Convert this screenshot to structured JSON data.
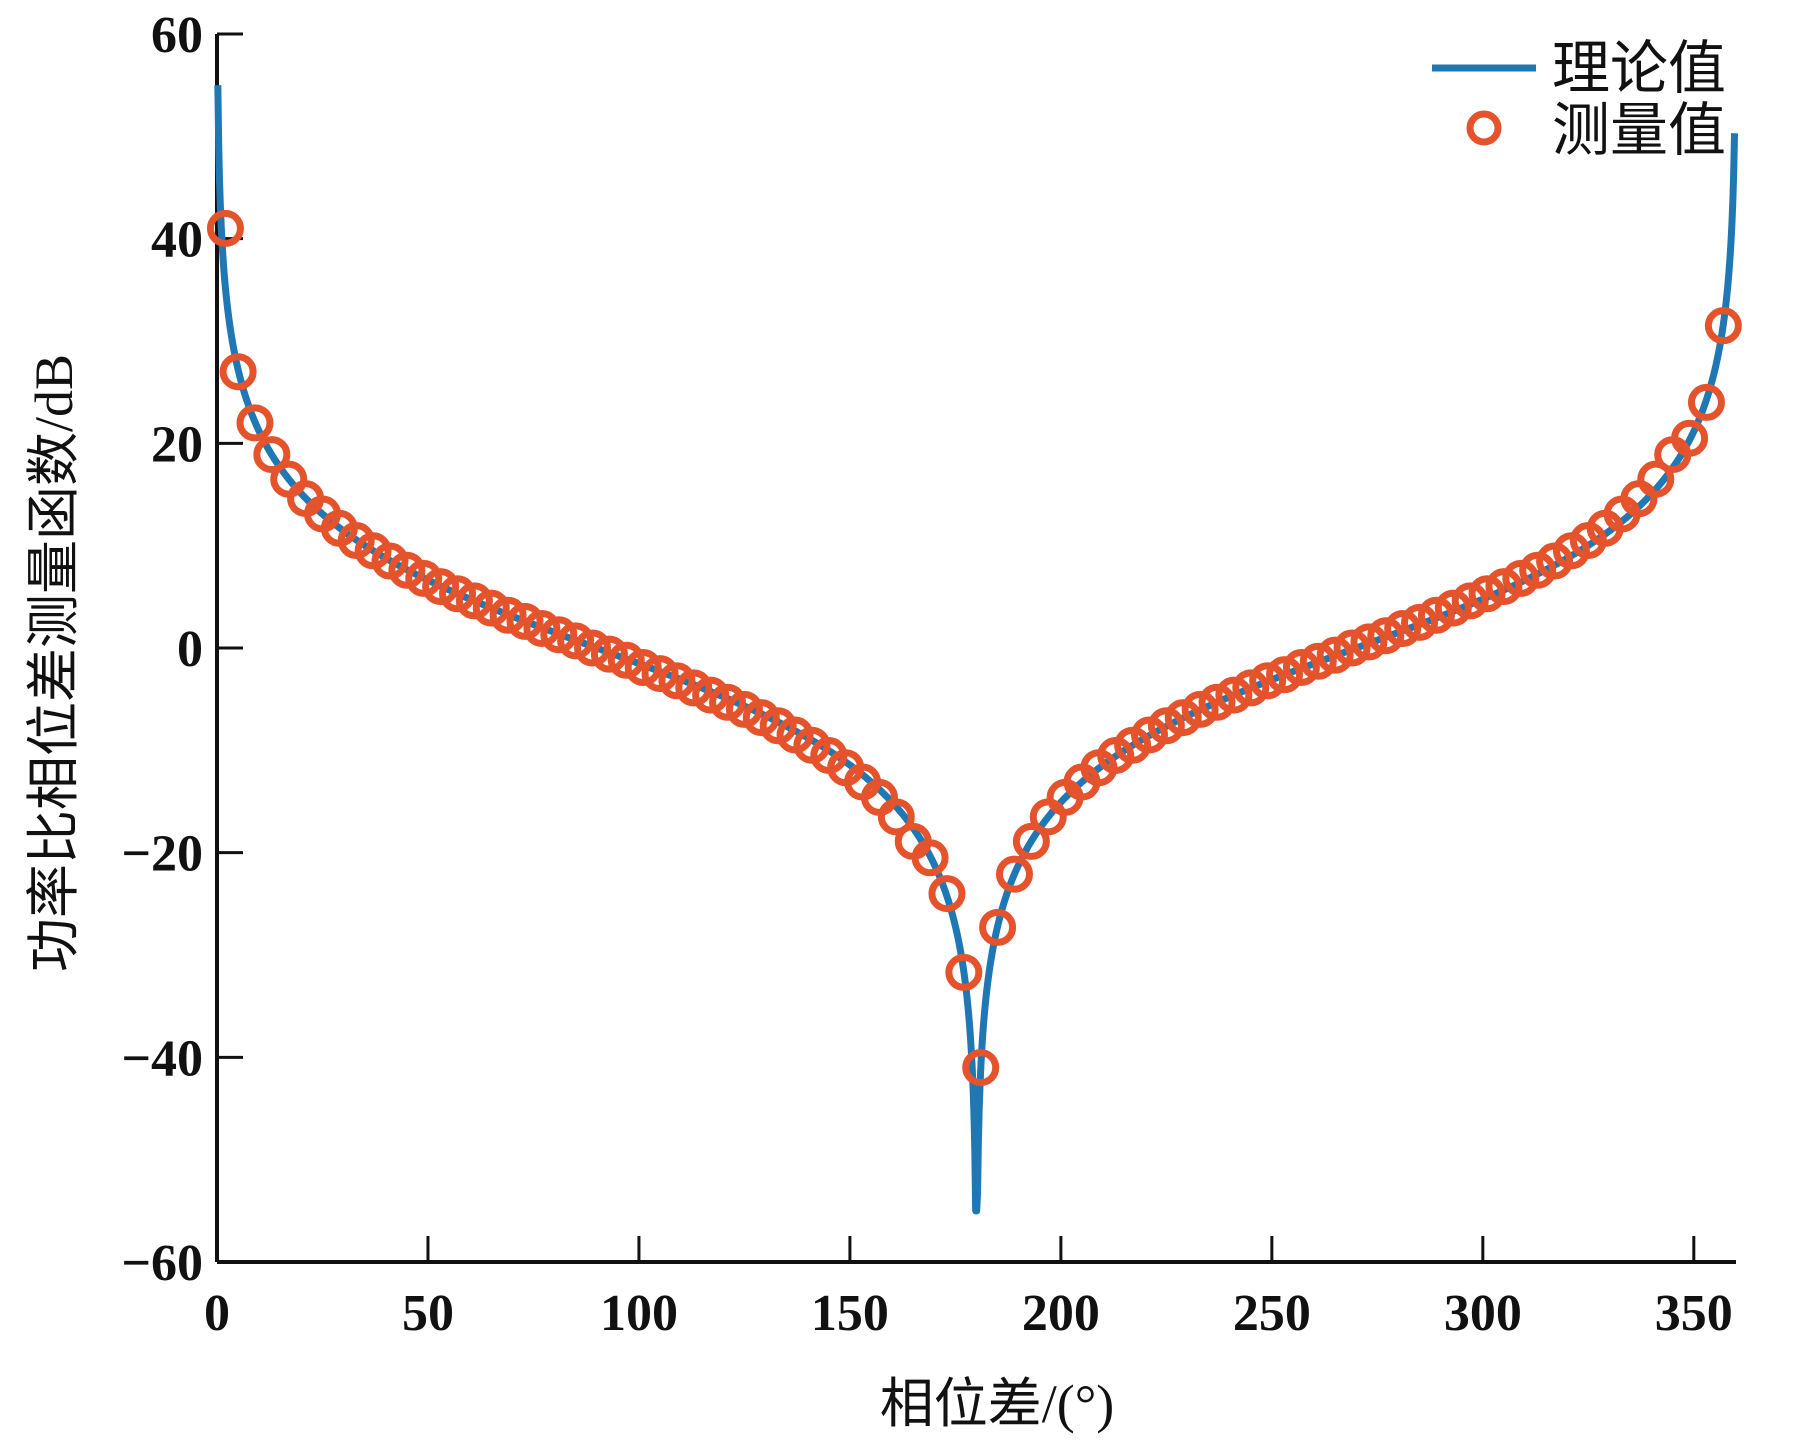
{
  "chart_data": {
    "type": "line",
    "title": "",
    "xlabel": "相位差/(°)",
    "ylabel": "功率比相位差测量函数/dB",
    "xlim": [
      0,
      360
    ],
    "ylim": [
      -60,
      60
    ],
    "xticks": [
      0,
      50,
      100,
      150,
      200,
      250,
      300,
      350
    ],
    "xtick_labels": [
      "0",
      "50",
      "100",
      "150",
      "200",
      "250",
      "300",
      "350"
    ],
    "yticks": [
      -60,
      -40,
      -20,
      0,
      20,
      40,
      60
    ],
    "ytick_labels": [
      "−60",
      "−40",
      "−20",
      "0",
      "20",
      "40",
      "60"
    ],
    "grid": false,
    "legend_position": "top-right",
    "series": [
      {
        "name": "理论值",
        "kind": "line",
        "color": "#1f77b4",
        "formula": "20*log10(cot(x/4)) dB, x in degrees",
        "x_range": [
          0.2,
          359.8
        ],
        "y_clip": [
          -55,
          55
        ]
      },
      {
        "name": "测量值",
        "kind": "marker",
        "marker": "circle-open",
        "color": "#e4532b",
        "x": [
          2,
          5,
          9,
          13,
          17,
          21,
          25,
          29,
          33,
          37,
          41,
          45,
          49,
          53,
          57,
          61,
          65,
          69,
          73,
          77,
          81,
          85,
          89,
          93,
          97,
          101,
          105,
          109,
          113,
          117,
          121,
          125,
          129,
          133,
          137,
          141,
          145,
          149,
          153,
          157,
          161,
          165,
          169,
          173,
          177,
          181,
          185,
          189,
          193,
          197,
          201,
          205,
          209,
          213,
          217,
          221,
          225,
          229,
          233,
          237,
          241,
          245,
          249,
          253,
          257,
          261,
          265,
          269,
          273,
          277,
          281,
          285,
          289,
          293,
          297,
          301,
          305,
          309,
          313,
          317,
          321,
          325,
          329,
          333,
          337,
          341,
          345,
          349,
          353,
          357
        ],
        "y": [
          41,
          27,
          22,
          18.9,
          16.5,
          14.6,
          13.1,
          11.7,
          10.5,
          9.5,
          8.5,
          7.6,
          6.8,
          6.0,
          5.3,
          4.6,
          3.9,
          3.2,
          2.6,
          1.9,
          1.3,
          0.7,
          0.0,
          -0.6,
          -1.2,
          -1.9,
          -2.5,
          -3.2,
          -3.9,
          -4.6,
          -5.3,
          -6.0,
          -6.8,
          -7.6,
          -8.5,
          -9.5,
          -10.5,
          -11.7,
          -13.1,
          -14.6,
          -16.5,
          -18.9,
          -20.5,
          -24.0,
          -31.7,
          -41.0,
          -27.3,
          -22.1,
          -18.9,
          -16.5,
          -14.6,
          -13.1,
          -11.7,
          -10.5,
          -9.5,
          -8.5,
          -7.6,
          -6.8,
          -6.0,
          -5.3,
          -4.6,
          -3.9,
          -3.2,
          -2.6,
          -1.9,
          -1.3,
          -0.7,
          0.0,
          0.6,
          1.2,
          1.9,
          2.5,
          3.2,
          3.9,
          4.6,
          5.3,
          6.0,
          6.8,
          7.6,
          8.5,
          9.5,
          10.5,
          11.7,
          13.1,
          14.6,
          16.5,
          18.9,
          20.5,
          24.0,
          31.5
        ]
      }
    ]
  }
}
